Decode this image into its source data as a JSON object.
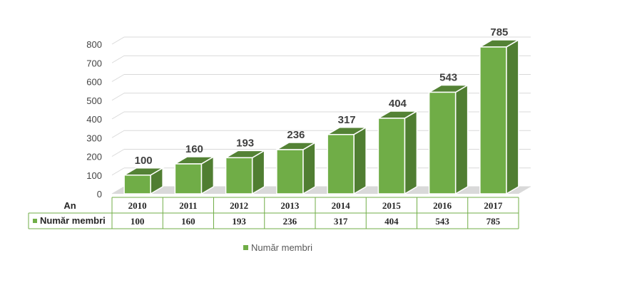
{
  "chart_data": {
    "type": "bar",
    "categories": [
      "2010",
      "2011",
      "2012",
      "2013",
      "2014",
      "2015",
      "2016",
      "2017"
    ],
    "series": [
      {
        "name": "Număr membri",
        "values": [
          100,
          160,
          193,
          236,
          317,
          404,
          543,
          785
        ]
      }
    ],
    "yticks": [
      "0",
      "100",
      "200",
      "300",
      "400",
      "500",
      "600",
      "700",
      "800"
    ],
    "ylim": [
      0,
      800
    ],
    "grid": true,
    "legend": "bottom",
    "style": "3d-column",
    "colors": {
      "front": "#70ad47",
      "side": "#507e32",
      "top": "#548235",
      "floor": "#d9d9d9",
      "grid": "#d9d9d9",
      "table_border": "#70ad47"
    }
  },
  "table": {
    "header_label": "An",
    "row_label": "Număr membri"
  },
  "legend": {
    "label": "Număr membri"
  }
}
